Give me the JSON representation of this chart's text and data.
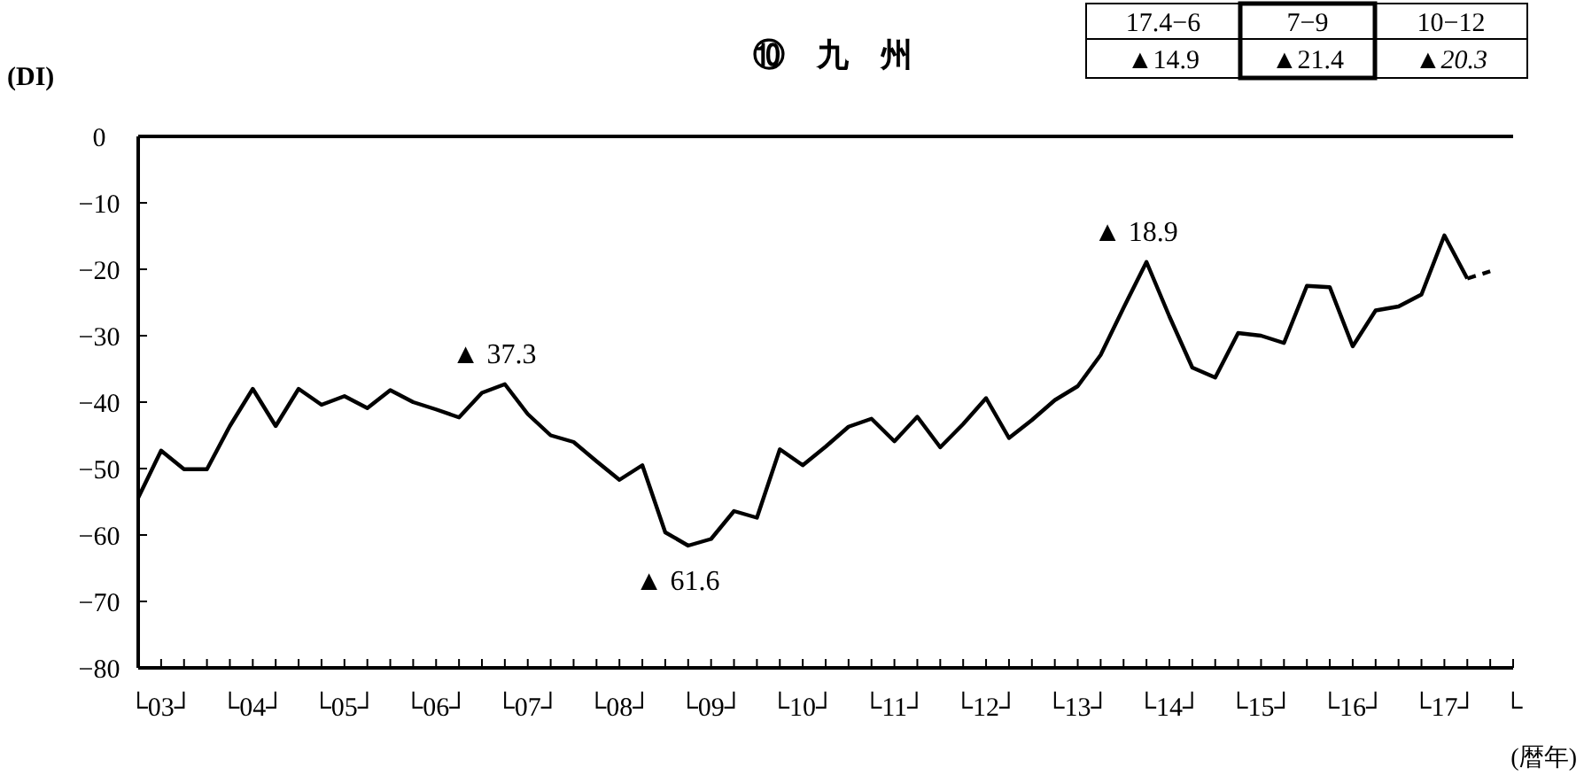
{
  "chart_data": {
    "type": "line",
    "title": "⑩　九　州",
    "ylabel": "(DI)",
    "xlabel": "(暦年)",
    "categories": [
      null,
      "└03┘",
      null,
      null,
      null,
      "└04┘",
      null,
      null,
      null,
      "└05┘",
      null,
      null,
      null,
      "└06┘",
      null,
      null,
      null,
      "└07┘",
      null,
      null,
      null,
      "└08┘",
      null,
      null,
      null,
      "└09┘",
      null,
      null,
      null,
      "└10┘",
      null,
      null,
      null,
      "└11┘",
      null,
      null,
      null,
      "└12┘",
      null,
      null,
      null,
      "└13┘",
      null,
      null,
      null,
      "└14┘",
      null,
      null,
      null,
      "└15┘",
      null,
      null,
      null,
      "└16┘",
      null,
      null,
      null,
      "└17┘",
      null,
      null,
      "└"
    ],
    "series": [
      {
        "color": "#000000",
        "line_style": "solid",
        "values": [
          -54.4,
          -47.3,
          -50.1,
          -50.1,
          -43.6,
          -38.0,
          -43.6,
          -38.0,
          -40.4,
          -39.1,
          -40.9,
          -38.2,
          -40.0,
          -41.1,
          -42.3,
          -38.6,
          -37.3,
          -41.8,
          -45.0,
          -46.0,
          -48.9,
          -51.7,
          -49.5,
          -59.6,
          -61.6,
          -60.6,
          -56.4,
          -57.4,
          -47.1,
          -49.5,
          -46.7,
          -43.7,
          -42.5,
          -45.9,
          -42.2,
          -46.8,
          -43.3,
          -39.4,
          -45.4,
          -42.7,
          -39.7,
          -37.6,
          -32.9,
          -25.8,
          -18.9,
          -27.1,
          -34.8,
          -36.3,
          -29.6,
          -30.0,
          -31.1,
          -22.5,
          -22.7,
          -31.6,
          -26.2,
          -25.6,
          -23.8,
          -14.9,
          -21.4,
          null,
          null
        ]
      },
      {
        "color": "#000000",
        "line_style": "dashed",
        "values": [
          null,
          null,
          null,
          null,
          null,
          null,
          null,
          null,
          null,
          null,
          null,
          null,
          null,
          null,
          null,
          null,
          null,
          null,
          null,
          null,
          null,
          null,
          null,
          null,
          null,
          null,
          null,
          null,
          null,
          null,
          null,
          null,
          null,
          null,
          null,
          null,
          null,
          null,
          null,
          null,
          null,
          null,
          null,
          null,
          null,
          null,
          null,
          null,
          null,
          null,
          null,
          null,
          null,
          null,
          null,
          null,
          null,
          null,
          -21.4,
          -20.3,
          null
        ]
      }
    ],
    "ylim": [
      -80,
      0
    ],
    "yticks": [
      0,
      -10,
      -20,
      -30,
      -40,
      -50,
      -60,
      -70,
      -80
    ],
    "grid": false,
    "marker": "none",
    "annotations": [
      "17.4−6",
      "7−9",
      "10−12",
      "▲14.9",
      "▲21.4",
      "▲20.3",
      {
        "text": "▲ 37.3",
        "y": -37.3
      },
      {
        "text": "▲ 61.6",
        "y": -61.6
      },
      {
        "text": "▲ 18.9",
        "y": -18.9
      }
    ]
  }
}
